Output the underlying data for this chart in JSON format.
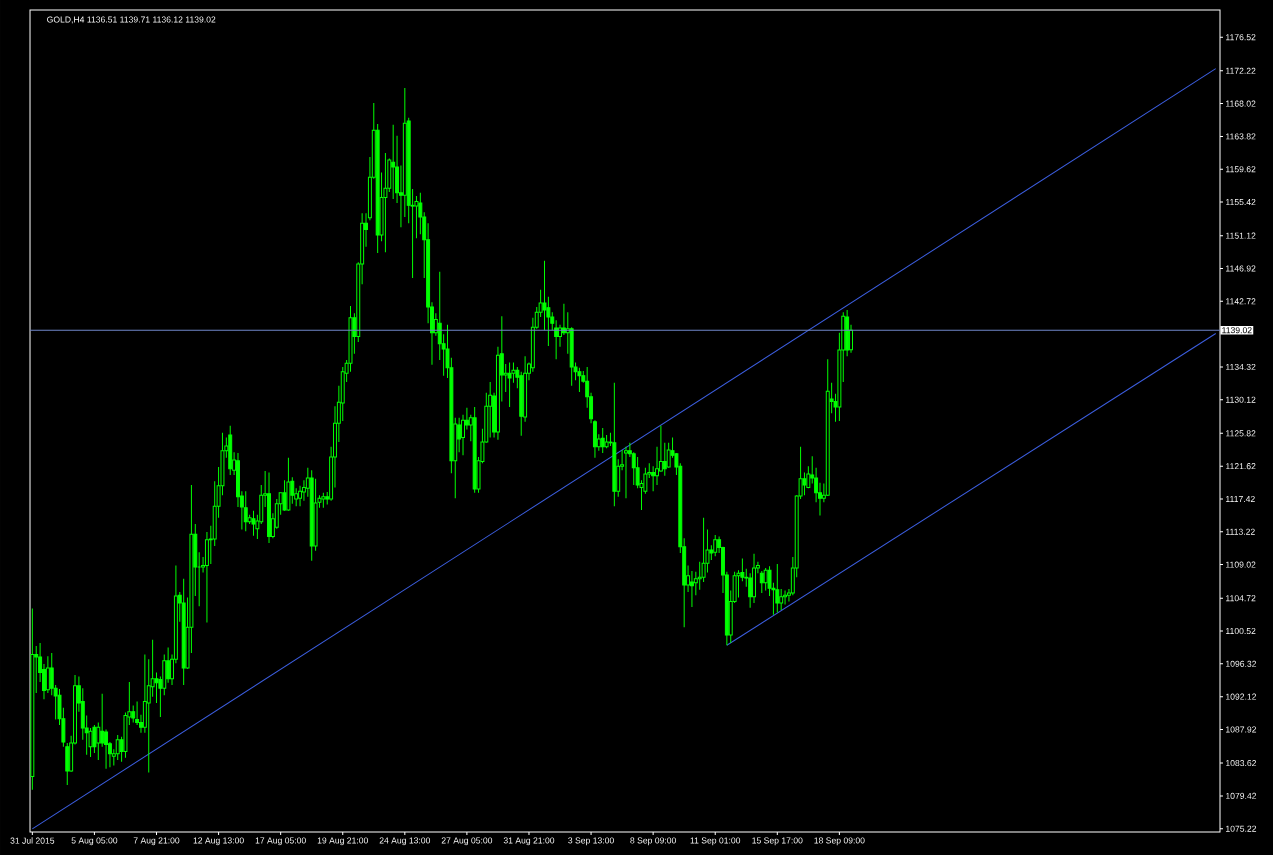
{
  "chart_data": {
    "type": "candlestick",
    "title": "GOLD,H4  1136.51 1139.71 1136.12 1139.02",
    "color": "#00ff00",
    "categories": [
      "31 Jul 2015",
      null,
      null,
      null,
      null,
      null,
      null,
      null,
      null,
      null,
      null,
      null,
      null,
      null,
      null,
      null,
      "5 Aug 05:00",
      null,
      null,
      null,
      null,
      null,
      null,
      null,
      null,
      null,
      null,
      null,
      null,
      null,
      null,
      null,
      "7 Aug 21:00",
      null,
      null,
      null,
      null,
      null,
      null,
      null,
      null,
      null,
      null,
      null,
      null,
      null,
      null,
      null,
      "12 Aug 13:00",
      null,
      null,
      null,
      null,
      null,
      null,
      null,
      null,
      null,
      null,
      null,
      null,
      null,
      null,
      null,
      "17 Aug 05:00",
      null,
      null,
      null,
      null,
      null,
      null,
      null,
      null,
      null,
      null,
      null,
      null,
      null,
      null,
      null,
      "19 Aug 21:00",
      null,
      null,
      null,
      null,
      null,
      null,
      null,
      null,
      null,
      null,
      null,
      null,
      null,
      null,
      null,
      "24 Aug 13:00",
      null,
      null,
      null,
      null,
      null,
      null,
      null,
      null,
      null,
      null,
      null,
      null,
      null,
      null,
      null,
      "27 Aug 05:00",
      null,
      null,
      null,
      null,
      null,
      null,
      null,
      null,
      null,
      null,
      null,
      null,
      null,
      null,
      null,
      "31 Aug 21:00",
      null,
      null,
      null,
      null,
      null,
      null,
      null,
      null,
      null,
      null,
      null,
      null,
      null,
      null,
      null,
      "3 Sep 13:00",
      null,
      null,
      null,
      null,
      null,
      null,
      null,
      null,
      null,
      null,
      null,
      null,
      null,
      null,
      null,
      "8 Sep 09:00",
      null,
      null,
      null,
      null,
      null,
      null,
      null,
      null,
      null,
      null,
      null,
      null,
      null,
      null,
      null,
      "11 Sep 01:00",
      null,
      null,
      null,
      null,
      null,
      null,
      null,
      null,
      null,
      null,
      null,
      null,
      null,
      null,
      null,
      "15 Sep 17:00",
      null,
      null,
      null,
      null,
      null,
      null,
      null,
      null,
      null,
      null,
      null,
      null,
      null,
      null,
      null,
      "18 Sep 09:00",
      null,
      null,
      null,
      null,
      null,
      null,
      null,
      null,
      null,
      null,
      null,
      null,
      null,
      null,
      null,
      null,
      null,
      null,
      null,
      null,
      null,
      null,
      null,
      null,
      null,
      null,
      null,
      null,
      null,
      null,
      null,
      null,
      null,
      null,
      null,
      null,
      null,
      null,
      null,
      null,
      null,
      null,
      null,
      null,
      null,
      null,
      null,
      null,
      null,
      null,
      null,
      null,
      null,
      null,
      null,
      null,
      null,
      null,
      null,
      null,
      null,
      null,
      null,
      null,
      null,
      null,
      null,
      null,
      null,
      null,
      null,
      null,
      null,
      null,
      null,
      null,
      null,
      null,
      null,
      null,
      null,
      null,
      null,
      null,
      null,
      null,
      null,
      null,
      null,
      null,
      null,
      null,
      null,
      null,
      null,
      null,
      null
    ],
    "ohlc": [
      [
        1081.9,
        1103.4,
        1080.2,
        1097.5
      ],
      [
        1097.5,
        1098.6,
        1092.6,
        1097.2
      ],
      [
        1097.2,
        1099.0,
        1094.0,
        1095.2
      ],
      [
        1095.6,
        1096.3,
        1091.8,
        1092.9
      ],
      [
        1093.0,
        1097.3,
        1092.6,
        1095.8
      ],
      [
        1095.8,
        1097.7,
        1092.3,
        1093.2
      ],
      [
        1093.2,
        1093.6,
        1089.2,
        1092.2
      ],
      [
        1092.3,
        1093.1,
        1088.5,
        1089.3
      ],
      [
        1089.3,
        1090.7,
        1085.7,
        1086.3
      ],
      [
        1085.7,
        1086.2,
        1080.8,
        1082.6
      ],
      [
        1082.6,
        1087.1,
        1082.5,
        1086.2
      ],
      [
        1086.2,
        1094.9,
        1086.0,
        1093.5
      ],
      [
        1093.5,
        1094.7,
        1090.2,
        1091.3
      ],
      [
        1091.5,
        1093.2,
        1086.6,
        1088.1
      ],
      [
        1088.1,
        1089.7,
        1084.7,
        1087.5
      ],
      [
        1085.7,
        1088.1,
        1084.4,
        1087.7
      ],
      [
        1088.2,
        1088.5,
        1084.9,
        1085.7
      ],
      [
        1086.2,
        1088.8,
        1084.0,
        1088.2
      ],
      [
        1087.7,
        1092.5,
        1085.7,
        1086.2
      ],
      [
        1087.6,
        1087.9,
        1082.9,
        1086.0
      ],
      [
        1086.1,
        1086.3,
        1083.1,
        1084.8
      ],
      [
        1084.5,
        1085.4,
        1083.3,
        1084.8
      ],
      [
        1084.8,
        1087.2,
        1084.0,
        1086.6
      ],
      [
        1086.6,
        1087.0,
        1083.8,
        1085.1
      ],
      [
        1085.1,
        1090.1,
        1084.3,
        1089.7
      ],
      [
        1089.5,
        1094.0,
        1088.5,
        1090.2
      ],
      [
        1090.2,
        1091.0,
        1088.8,
        1089.4
      ],
      [
        1089.2,
        1091.5,
        1088.5,
        1088.8
      ],
      [
        1088.8,
        1089.8,
        1087.5,
        1088.2
      ],
      [
        1088.2,
        1097.5,
        1087.5,
        1091.5
      ],
      [
        1091.3,
        1096.9,
        1082.4,
        1093.5
      ],
      [
        1093.4,
        1099.4,
        1092.1,
        1094.4
      ],
      [
        1094.4,
        1095.2,
        1091.3,
        1093.9
      ],
      [
        1094.3,
        1094.7,
        1089.5,
        1093.2
      ],
      [
        1093.2,
        1097.5,
        1092.3,
        1096.7
      ],
      [
        1096.7,
        1098.4,
        1093.9,
        1094.4
      ],
      [
        1094.4,
        1097.5,
        1093.6,
        1096.9
      ],
      [
        1096.9,
        1108.9,
        1096.4,
        1105.0
      ],
      [
        1105.1,
        1105.5,
        1101.7,
        1104.1
      ],
      [
        1104.1,
        1107.2,
        1093.6,
        1095.8
      ],
      [
        1095.8,
        1104.8,
        1095.7,
        1101.0
      ],
      [
        1101.0,
        1119.2,
        1097.7,
        1112.9
      ],
      [
        1112.9,
        1114.2,
        1105.0,
        1108.7
      ],
      [
        1108.7,
        1110.6,
        1103.7,
        1108.7
      ],
      [
        1108.7,
        1110.0,
        1108.0,
        1108.9
      ],
      [
        1108.9,
        1113.2,
        1101.6,
        1112.2
      ],
      [
        1112.2,
        1114.0,
        1109.1,
        1112.3
      ],
      [
        1112.3,
        1119.7,
        1111.4,
        1116.5
      ],
      [
        1116.5,
        1121.5,
        1115.0,
        1119.1
      ],
      [
        1119.1,
        1125.9,
        1117.9,
        1123.6
      ],
      [
        1123.6,
        1125.3,
        1122.7,
        1124.2
      ],
      [
        1125.6,
        1126.8,
        1120.5,
        1121.3
      ],
      [
        1121.1,
        1123.4,
        1120.5,
        1122.4
      ],
      [
        1122.3,
        1123.3,
        1116.4,
        1117.7
      ],
      [
        1117.8,
        1118.4,
        1113.5,
        1116.4
      ],
      [
        1116.3,
        1118.4,
        1113.3,
        1114.5
      ],
      [
        1114.5,
        1115.4,
        1114.2,
        1115.0
      ],
      [
        1114.9,
        1115.9,
        1112.7,
        1114.2
      ],
      [
        1113.6,
        1115.4,
        1112.3,
        1114.6
      ],
      [
        1114.5,
        1119.2,
        1114.2,
        1117.9
      ],
      [
        1117.9,
        1121.0,
        1116.4,
        1118.1
      ],
      [
        1118.1,
        1120.8,
        1111.8,
        1112.6
      ],
      [
        1112.6,
        1115.6,
        1112.4,
        1114.9
      ],
      [
        1113.8,
        1117.4,
        1113.6,
        1116.8
      ],
      [
        1116.8,
        1118.2,
        1115.4,
        1118.2
      ],
      [
        1118.2,
        1119.8,
        1115.9,
        1116.0
      ],
      [
        1116.0,
        1122.7,
        1115.9,
        1119.6
      ],
      [
        1119.7,
        1120.2,
        1116.8,
        1117.9
      ],
      [
        1117.4,
        1118.8,
        1116.5,
        1118.1
      ],
      [
        1117.5,
        1119.1,
        1116.5,
        1118.4
      ],
      [
        1118.3,
        1119.8,
        1117.2,
        1118.9
      ],
      [
        1118.8,
        1121.4,
        1117.7,
        1120.1
      ],
      [
        1120.1,
        1121.1,
        1109.5,
        1111.4
      ],
      [
        1111.4,
        1120.0,
        1110.8,
        1116.9
      ],
      [
        1117.0,
        1117.9,
        1116.3,
        1117.5
      ],
      [
        1117.4,
        1118.2,
        1116.3,
        1117.7
      ],
      [
        1117.7,
        1118.3,
        1116.7,
        1117.4
      ],
      [
        1117.4,
        1124.1,
        1117.2,
        1122.8
      ],
      [
        1122.8,
        1129.3,
        1118.9,
        1127.1
      ],
      [
        1127.1,
        1131.9,
        1124.7,
        1129.8
      ],
      [
        1129.7,
        1134.3,
        1127.4,
        1133.7
      ],
      [
        1133.5,
        1135.2,
        1132.4,
        1134.8
      ],
      [
        1134.8,
        1142.1,
        1133.7,
        1140.6
      ],
      [
        1140.6,
        1141.2,
        1136.0,
        1138.2
      ],
      [
        1138.2,
        1147.7,
        1137.5,
        1147.5
      ],
      [
        1147.5,
        1154.0,
        1144.9,
        1152.7
      ],
      [
        1152.7,
        1154.0,
        1149.7,
        1151.9
      ],
      [
        1153.4,
        1161.2,
        1153.1,
        1158.6
      ],
      [
        1158.6,
        1168.1,
        1158.4,
        1164.6
      ],
      [
        1164.6,
        1165.4,
        1148.9,
        1151.2
      ],
      [
        1151.2,
        1159.2,
        1150.4,
        1156.0
      ],
      [
        1156.0,
        1161.7,
        1149.0,
        1157.2
      ],
      [
        1157.2,
        1161.0,
        1156.7,
        1160.8
      ],
      [
        1160.5,
        1165.3,
        1155.8,
        1159.9
      ],
      [
        1159.9,
        1163.9,
        1155.3,
        1156.6
      ],
      [
        1156.6,
        1160.1,
        1152.2,
        1156.3
      ],
      [
        1156.3,
        1170.0,
        1153.5,
        1165.5
      ],
      [
        1165.8,
        1166.2,
        1152.7,
        1155.0
      ],
      [
        1155.0,
        1157.1,
        1145.7,
        1154.9
      ],
      [
        1154.9,
        1156.2,
        1150.8,
        1155.5
      ],
      [
        1155.3,
        1156.6,
        1151.3,
        1153.5
      ],
      [
        1153.5,
        1154.1,
        1145.7,
        1150.6
      ],
      [
        1150.6,
        1152.7,
        1139.9,
        1142.0
      ],
      [
        1142.0,
        1142.6,
        1134.6,
        1138.7
      ],
      [
        1138.7,
        1141.2,
        1138.3,
        1140.4
      ],
      [
        1139.9,
        1146.5,
        1135.2,
        1137.3
      ],
      [
        1137.3,
        1138.5,
        1133.2,
        1136.6
      ],
      [
        1136.6,
        1139.7,
        1132.9,
        1134.2
      ],
      [
        1134.2,
        1135.5,
        1120.7,
        1122.3
      ],
      [
        1122.3,
        1127.8,
        1117.5,
        1127.0
      ],
      [
        1126.9,
        1127.8,
        1123.4,
        1125.1
      ],
      [
        1125.3,
        1128.2,
        1123.0,
        1127.5
      ],
      [
        1127.5,
        1129.1,
        1126.3,
        1126.9
      ],
      [
        1126.9,
        1128.2,
        1124.8,
        1127.8
      ],
      [
        1127.8,
        1129.2,
        1118.2,
        1118.7
      ],
      [
        1118.7,
        1122.8,
        1118.2,
        1122.3
      ],
      [
        1122.2,
        1126.4,
        1122.0,
        1124.7
      ],
      [
        1124.7,
        1131.0,
        1124.6,
        1129.3
      ],
      [
        1129.3,
        1132.4,
        1125.3,
        1130.7
      ],
      [
        1130.6,
        1131.0,
        1125.3,
        1126.0
      ],
      [
        1126.0,
        1136.9,
        1125.0,
        1135.8
      ],
      [
        1136.0,
        1140.8,
        1129.9,
        1133.3
      ],
      [
        1133.3,
        1134.7,
        1131.1,
        1133.5
      ],
      [
        1133.5,
        1134.9,
        1129.2,
        1132.9
      ],
      [
        1133.5,
        1134.9,
        1132.3,
        1133.9
      ],
      [
        1133.9,
        1134.3,
        1131.6,
        1133.0
      ],
      [
        1133.2,
        1133.7,
        1125.5,
        1128.0
      ],
      [
        1127.9,
        1135.7,
        1127.3,
        1133.5
      ],
      [
        1133.5,
        1134.9,
        1132.6,
        1134.7
      ],
      [
        1134.2,
        1140.6,
        1133.7,
        1139.4
      ],
      [
        1139.4,
        1142.0,
        1139.2,
        1141.3
      ],
      [
        1141.3,
        1144.2,
        1140.7,
        1142.5
      ],
      [
        1142.5,
        1147.9,
        1139.0,
        1141.6
      ],
      [
        1141.9,
        1143.3,
        1137.0,
        1140.7
      ],
      [
        1140.7,
        1141.3,
        1139.0,
        1139.9
      ],
      [
        1139.3,
        1140.3,
        1135.3,
        1138.2
      ],
      [
        1138.2,
        1139.7,
        1136.9,
        1139.3
      ],
      [
        1139.3,
        1142.4,
        1138.4,
        1138.7
      ],
      [
        1138.7,
        1141.3,
        1136.0,
        1139.2
      ],
      [
        1139.2,
        1139.4,
        1131.9,
        1134.3
      ],
      [
        1134.3,
        1134.9,
        1132.6,
        1133.7
      ],
      [
        1133.7,
        1134.2,
        1131.1,
        1133.2
      ],
      [
        1133.2,
        1133.8,
        1132.3,
        1132.5
      ],
      [
        1132.5,
        1134.3,
        1129.1,
        1130.5
      ],
      [
        1130.5,
        1131.0,
        1127.1,
        1127.7
      ],
      [
        1127.3,
        1127.5,
        1122.7,
        1124.1
      ],
      [
        1124.1,
        1125.7,
        1123.6,
        1125.1
      ],
      [
        1125.2,
        1126.5,
        1123.3,
        1124.1
      ],
      [
        1124.1,
        1125.6,
        1123.9,
        1124.7
      ],
      [
        1124.7,
        1125.9,
        1124.2,
        1124.6
      ],
      [
        1124.6,
        1132.3,
        1116.5,
        1118.4
      ],
      [
        1118.4,
        1122.5,
        1117.7,
        1121.6
      ],
      [
        1121.6,
        1123.7,
        1121.1,
        1121.8
      ],
      [
        1123.3,
        1124.1,
        1117.5,
        1123.6
      ],
      [
        1123.6,
        1124.6,
        1122.8,
        1123.2
      ],
      [
        1123.2,
        1123.4,
        1119.2,
        1121.4
      ],
      [
        1121.4,
        1122.8,
        1118.8,
        1119.2
      ],
      [
        1118.9,
        1119.8,
        1116.0,
        1119.4
      ],
      [
        1118.4,
        1121.4,
        1118.1,
        1120.6
      ],
      [
        1120.6,
        1122.0,
        1120.1,
        1120.8
      ],
      [
        1120.8,
        1121.6,
        1118.4,
        1120.4
      ],
      [
        1120.4,
        1124.1,
        1119.2,
        1121.3
      ],
      [
        1121.0,
        1126.8,
        1120.9,
        1122.2
      ],
      [
        1122.2,
        1124.6,
        1120.4,
        1121.3
      ],
      [
        1121.5,
        1124.6,
        1121.4,
        1123.7
      ],
      [
        1123.6,
        1125.3,
        1122.7,
        1123.0
      ],
      [
        1123.2,
        1123.3,
        1120.5,
        1121.5
      ],
      [
        1121.6,
        1122.0,
        1110.5,
        1111.3
      ],
      [
        1111.3,
        1112.4,
        1101.0,
        1106.4
      ],
      [
        1106.4,
        1108.9,
        1105.5,
        1107.6
      ],
      [
        1106.8,
        1108.2,
        1103.6,
        1106.3
      ],
      [
        1106.7,
        1108.1,
        1105.1,
        1107.2
      ],
      [
        1107.2,
        1109.4,
        1105.8,
        1107.4
      ],
      [
        1107.4,
        1115.0,
        1106.8,
        1109.2
      ],
      [
        1109.2,
        1113.5,
        1108.0,
        1110.9
      ],
      [
        1110.9,
        1111.5,
        1109.6,
        1110.5
      ],
      [
        1110.6,
        1112.8,
        1110.1,
        1112.2
      ],
      [
        1112.2,
        1112.6,
        1110.5,
        1111.2
      ],
      [
        1111.2,
        1111.3,
        1105.4,
        1107.7
      ],
      [
        1107.7,
        1108.1,
        1098.7,
        1100.0
      ],
      [
        1100.0,
        1105.7,
        1099.0,
        1104.3
      ],
      [
        1104.3,
        1108.1,
        1104.1,
        1107.6
      ],
      [
        1107.6,
        1108.3,
        1104.8,
        1107.9
      ],
      [
        1108.0,
        1109.8,
        1106.9,
        1107.4
      ],
      [
        1107.4,
        1108.5,
        1106.2,
        1107.3
      ],
      [
        1107.3,
        1107.9,
        1103.5,
        1104.9
      ],
      [
        1104.9,
        1110.4,
        1104.1,
        1108.6
      ],
      [
        1108.6,
        1109.4,
        1107.9,
        1108.9
      ],
      [
        1107.9,
        1108.2,
        1105.4,
        1106.7
      ],
      [
        1106.7,
        1108.6,
        1105.7,
        1108.3
      ],
      [
        1108.3,
        1108.8,
        1105.0,
        1106.0
      ],
      [
        1106.0,
        1106.7,
        1102.6,
        1105.8
      ],
      [
        1105.8,
        1109.1,
        1102.9,
        1104.1
      ],
      [
        1104.1,
        1105.9,
        1103.2,
        1104.9
      ],
      [
        1104.9,
        1105.7,
        1103.9,
        1105.1
      ],
      [
        1105.1,
        1105.9,
        1104.3,
        1105.4
      ],
      [
        1105.4,
        1110.0,
        1105.1,
        1108.6
      ],
      [
        1108.6,
        1117.9,
        1107.4,
        1117.8
      ],
      [
        1117.8,
        1124.1,
        1117.4,
        1120.0
      ],
      [
        1120.0,
        1120.8,
        1117.9,
        1119.2
      ],
      [
        1118.9,
        1121.6,
        1118.8,
        1120.6
      ],
      [
        1120.5,
        1122.9,
        1119.4,
        1120.1
      ],
      [
        1120.1,
        1121.4,
        1117.0,
        1118.2
      ],
      [
        1118.2,
        1119.5,
        1115.3,
        1117.5
      ],
      [
        1117.5,
        1119.4,
        1117.0,
        1117.9
      ],
      [
        1117.9,
        1135.3,
        1117.8,
        1131.2
      ],
      [
        1130.2,
        1132.3,
        1128.4,
        1129.9
      ],
      [
        1129.9,
        1130.9,
        1127.3,
        1129.2
      ],
      [
        1129.2,
        1138.7,
        1127.4,
        1136.5
      ],
      [
        1136.5,
        1141.3,
        1132.4,
        1140.8
      ],
      [
        1140.7,
        1141.6,
        1135.7,
        1136.5
      ],
      [
        1136.51,
        1139.71,
        1136.12,
        1139.02
      ],
      null,
      null,
      null,
      null,
      null,
      null,
      null,
      null,
      null,
      null,
      null,
      null,
      null,
      null,
      null,
      null,
      null,
      null,
      null,
      null,
      null,
      null,
      null,
      null,
      null,
      null,
      null,
      null,
      null,
      null,
      null,
      null,
      null,
      null,
      null,
      null,
      null,
      null,
      null,
      null,
      null,
      null,
      null,
      null,
      null,
      null,
      null,
      null,
      null,
      null,
      null,
      null,
      null,
      null,
      null,
      null,
      null,
      null,
      null,
      null,
      null,
      null,
      null,
      null,
      null,
      null,
      null,
      null,
      null,
      null,
      null,
      null,
      null,
      null,
      null,
      null,
      null,
      null,
      null,
      null,
      null,
      null,
      null,
      null,
      null,
      null,
      null,
      null,
      null,
      null,
      null,
      null,
      null,
      null
    ],
    "series": [
      {
        "type": "line",
        "color": "#3c5ee0",
        "values": [
          1075.2,
          null,
          null,
          null,
          null,
          null,
          null,
          null,
          null,
          null,
          null,
          null,
          null,
          null,
          null,
          null,
          null,
          null,
          null,
          null,
          null,
          null,
          null,
          null,
          null,
          null,
          null,
          null,
          null,
          null,
          null,
          null,
          null,
          null,
          null,
          null,
          null,
          null,
          null,
          null,
          null,
          null,
          null,
          null,
          null,
          null,
          null,
          null,
          null,
          null,
          null,
          null,
          null,
          null,
          null,
          null,
          null,
          null,
          null,
          null,
          null,
          null,
          null,
          null,
          null,
          null,
          null,
          null,
          null,
          null,
          null,
          null,
          null,
          null,
          null,
          null,
          null,
          null,
          null,
          null,
          null,
          null,
          null,
          null,
          null,
          null,
          null,
          null,
          null,
          null,
          null,
          null,
          null,
          null,
          null,
          null,
          null,
          null,
          null,
          null,
          null,
          null,
          null,
          null,
          null,
          null,
          null,
          null,
          null,
          null,
          null,
          null,
          null,
          null,
          null,
          null,
          null,
          null,
          null,
          null,
          null,
          null,
          null,
          null,
          null,
          null,
          null,
          null,
          null,
          null,
          null,
          null,
          null,
          null,
          null,
          null,
          null,
          null,
          null,
          null,
          null,
          null,
          null,
          null,
          null,
          null,
          null,
          null,
          null,
          null,
          null,
          null,
          null,
          null,
          null,
          null,
          null,
          null,
          null,
          null,
          null,
          null,
          null,
          null,
          null,
          null,
          null,
          null,
          null,
          null,
          null,
          null,
          null,
          null,
          null,
          null,
          null,
          null,
          null,
          null,
          null,
          null,
          null,
          null,
          null,
          null,
          null,
          null,
          null,
          null,
          null,
          null,
          null,
          null,
          null,
          null,
          null,
          null,
          null,
          null,
          null,
          null,
          null,
          null,
          null,
          null,
          null,
          null,
          null,
          null,
          null,
          null,
          null,
          null,
          null,
          null,
          null,
          null,
          null,
          null,
          null,
          null,
          null,
          null,
          null,
          null,
          null,
          null,
          null,
          null,
          null,
          null,
          null,
          null,
          null,
          null,
          null,
          null,
          null,
          null,
          null,
          null,
          null,
          null,
          null,
          null,
          null,
          null,
          null,
          null,
          null,
          null,
          null,
          null,
          null,
          null,
          null,
          null,
          null,
          null,
          null,
          null,
          null,
          null,
          null,
          null,
          null,
          null,
          null,
          null,
          null,
          null,
          null,
          null,
          null,
          null,
          null,
          null,
          null,
          null,
          null,
          null,
          null,
          null,
          null,
          null,
          null,
          null,
          null,
          null,
          null,
          null,
          null,
          null,
          null,
          null,
          null,
          null,
          null,
          null,
          null,
          null,
          null,
          null,
          null,
          1172.5
        ]
      },
      {
        "type": "line",
        "color": "#3c5ee0",
        "values": [
          null,
          null,
          null,
          null,
          null,
          null,
          null,
          null,
          null,
          null,
          null,
          null,
          null,
          null,
          null,
          null,
          null,
          null,
          null,
          null,
          null,
          null,
          null,
          null,
          null,
          null,
          null,
          null,
          null,
          null,
          null,
          null,
          null,
          null,
          null,
          null,
          null,
          null,
          null,
          null,
          null,
          null,
          null,
          null,
          null,
          null,
          null,
          null,
          null,
          null,
          null,
          null,
          null,
          null,
          null,
          null,
          null,
          null,
          null,
          null,
          null,
          null,
          null,
          null,
          null,
          null,
          null,
          null,
          null,
          null,
          null,
          null,
          null,
          null,
          null,
          null,
          null,
          null,
          null,
          null,
          null,
          null,
          null,
          null,
          null,
          null,
          null,
          null,
          null,
          null,
          null,
          null,
          null,
          null,
          null,
          null,
          null,
          null,
          null,
          null,
          null,
          null,
          null,
          null,
          null,
          null,
          null,
          null,
          null,
          null,
          null,
          null,
          null,
          null,
          null,
          null,
          null,
          null,
          null,
          null,
          null,
          null,
          null,
          null,
          null,
          null,
          null,
          null,
          null,
          null,
          null,
          null,
          null,
          null,
          null,
          null,
          null,
          null,
          null,
          null,
          null,
          null,
          null,
          null,
          null,
          null,
          null,
          null,
          null,
          null,
          null,
          null,
          null,
          null,
          null,
          null,
          null,
          null,
          null,
          null,
          null,
          null,
          null,
          null,
          null,
          null,
          null,
          null,
          null,
          null,
          null,
          null,
          null,
          null,
          null,
          null,
          null,
          null,
          null,
          1098.7,
          null,
          null,
          null,
          null,
          null,
          null,
          null,
          null,
          null,
          null,
          null,
          null,
          null,
          null,
          null,
          null,
          null,
          null,
          null,
          null,
          null,
          null,
          null,
          null,
          null,
          null,
          null,
          null,
          null,
          null,
          null,
          null,
          null,
          null,
          null,
          null,
          null,
          null,
          null,
          null,
          null,
          null,
          null,
          null,
          null,
          null,
          null,
          null,
          null,
          null,
          null,
          null,
          null,
          null,
          null,
          null,
          null,
          null,
          null,
          null,
          null,
          null,
          null,
          null,
          null,
          null,
          null,
          null,
          null,
          null,
          null,
          null,
          null,
          null,
          null,
          null,
          null,
          null,
          null,
          null,
          null,
          null,
          null,
          null,
          null,
          null,
          null,
          null,
          null,
          null,
          null,
          null,
          null,
          null,
          null,
          null,
          null,
          null,
          null,
          null,
          null,
          null,
          null,
          null,
          null,
          null,
          null,
          null,
          null,
          null,
          null,
          null,
          null,
          null,
          null,
          null,
          null,
          null,
          null,
          null,
          null,
          null,
          null,
          null,
          null,
          1138.6
        ]
      }
    ],
    "ref_lines": [
      {
        "axis": "y",
        "value": 1139.02,
        "label": "1139.02",
        "color": "#6f86c8"
      }
    ],
    "ylim": [
      1074.8,
      1180.0
    ],
    "yticks": [
      1075.22,
      1079.42,
      1083.62,
      1087.92,
      1092.12,
      1096.32,
      1100.52,
      1104.72,
      1109.02,
      1113.22,
      1117.42,
      1121.62,
      1125.82,
      1130.12,
      1134.32,
      1142.72,
      1146.92,
      1151.12,
      1155.42,
      1159.62,
      1163.82,
      1168.02,
      1172.22,
      1176.52
    ]
  }
}
